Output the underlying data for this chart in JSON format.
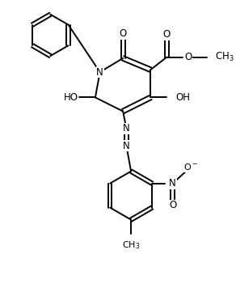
{
  "figsize": [
    2.92,
    3.72
  ],
  "dpi": 100,
  "background": "#ffffff",
  "lw": 1.4,
  "fs": 8.5,
  "xlim": [
    0,
    10
  ],
  "ylim": [
    0,
    13
  ]
}
